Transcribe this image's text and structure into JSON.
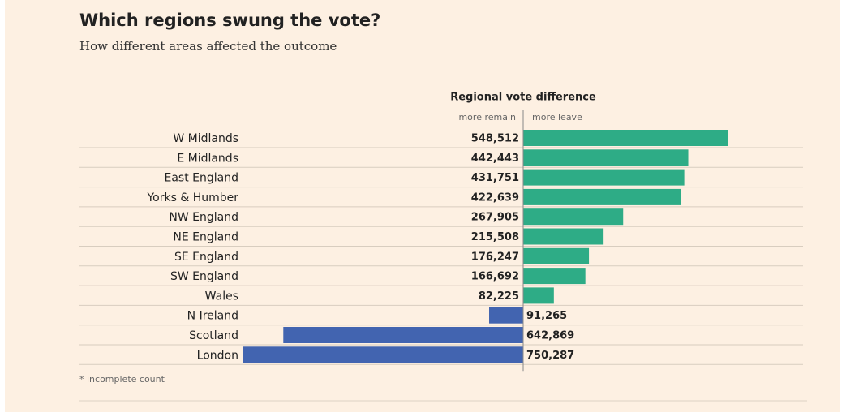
{
  "chart_data": {
    "type": "diverging_bar",
    "title": "Which regions swung the vote?",
    "subtitle": "How different areas affected the outcome",
    "axis_title": "Regional vote difference",
    "left_label": "more remain",
    "right_label": "more leave",
    "footnote": "* incomplete count",
    "categories": [
      "W Midlands",
      "E Midlands",
      "East England",
      "Yorks & Humber",
      "NW England",
      "NE England",
      "SE England",
      "SW England",
      "Wales",
      "N Ireland",
      "Scotland",
      "London"
    ],
    "values": [
      548512,
      442443,
      431751,
      422639,
      267905,
      215508,
      176247,
      166692,
      82225,
      -91265,
      -642869,
      -750287
    ],
    "value_labels": [
      "548,512",
      "442,443",
      "431,751",
      "422,639",
      "267,905",
      "215,508",
      "176,247",
      "166,692",
      "82,225",
      "91,265",
      "642,869",
      "750,287"
    ],
    "positive_color": "#2eac86",
    "negative_color": "#4264b0",
    "xlim": [
      -800000,
      800000
    ]
  }
}
